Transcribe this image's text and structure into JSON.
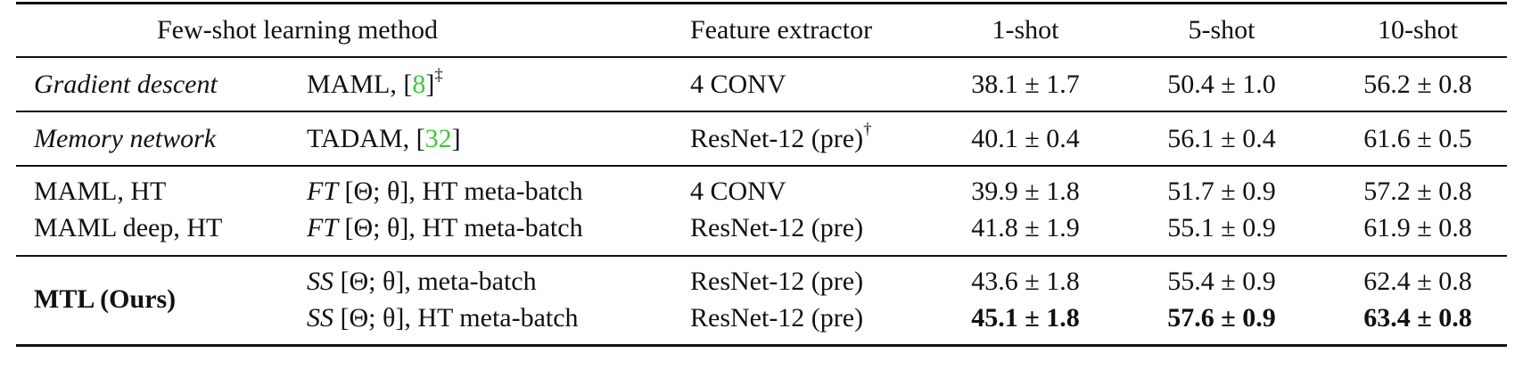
{
  "table": {
    "headers": {
      "method": "Few-shot learning method",
      "feature_extractor": "Feature extractor",
      "shot1": "1-shot",
      "shot5": "5-shot",
      "shot10": "10-shot"
    },
    "rows": [
      {
        "group": "Gradient descent",
        "method": "MAML,",
        "cite": "8",
        "method_mark": "‡",
        "feature_extractor": "4 CONV",
        "fe_mark": "",
        "shot1": "38.1 ± 1.7",
        "shot5": "50.4 ± 1.0",
        "shot10": "56.2 ± 0.8"
      },
      {
        "group": "Memory network",
        "method": "TADAM,",
        "cite": "32",
        "method_mark": "",
        "feature_extractor": "ResNet-12 (pre)",
        "fe_mark": "†",
        "shot1": "40.1 ± 0.4",
        "shot5": "56.1 ± 0.4",
        "shot10": "61.6 ± 0.5"
      },
      {
        "group": "MAML, HT",
        "method_prefix": "FT",
        "method": "[Θ; θ], HT meta-batch",
        "feature_extractor": "4 CONV",
        "shot1": "39.9 ± 1.8",
        "shot5": "51.7 ± 0.9",
        "shot10": "57.2 ± 0.8"
      },
      {
        "group": "MAML deep, HT",
        "method_prefix": "FT",
        "method": "[Θ; θ], HT meta-batch",
        "feature_extractor": "ResNet-12 (pre)",
        "shot1": "41.8 ± 1.9",
        "shot5": "55.1 ± 0.9",
        "shot10": "61.9 ± 0.8"
      },
      {
        "group": "MTL (Ours)",
        "method_prefix": "SS",
        "method": "[Θ; θ], meta-batch",
        "feature_extractor": "ResNet-12 (pre)",
        "shot1": "43.6 ± 1.8",
        "shot5": "55.4 ± 0.9",
        "shot10": "62.4 ± 0.8"
      },
      {
        "method_prefix": "SS",
        "method": "[Θ; θ], HT meta-batch",
        "feature_extractor": "ResNet-12 (pre)",
        "shot1": "45.1 ± 1.8",
        "shot5": "57.6 ± 0.9",
        "shot10": "63.4 ± 0.8"
      }
    ]
  }
}
